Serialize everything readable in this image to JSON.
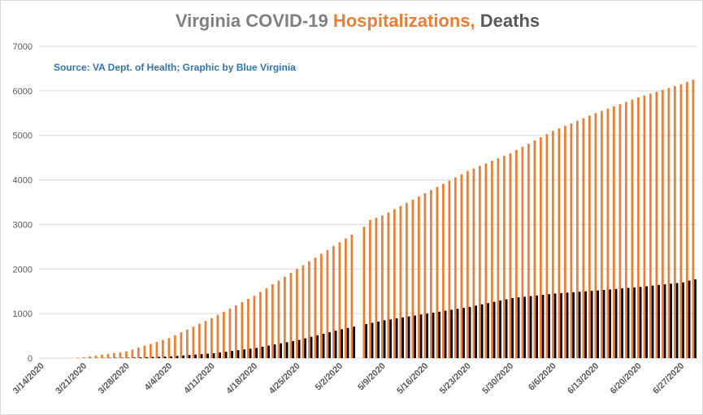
{
  "chart_data": {
    "type": "bar",
    "title_parts": [
      {
        "text": "Virginia COVID-19",
        "color": "#7f7f7f"
      },
      {
        "text": "Hospitalizations,",
        "color": "#ed7d31"
      },
      {
        "text": "Deaths",
        "color": "#595959"
      }
    ],
    "subtitle": "Source: VA Dept. of Health; Graphic by Blue Virginia",
    "categories": [
      "3/14/2020",
      null,
      null,
      null,
      null,
      null,
      null,
      "3/21/2020",
      null,
      null,
      null,
      null,
      null,
      null,
      "3/28/2020",
      null,
      null,
      null,
      null,
      null,
      null,
      "4/4/2020",
      null,
      null,
      null,
      null,
      null,
      null,
      "4/11/2020",
      null,
      null,
      null,
      null,
      null,
      null,
      "4/18/2020",
      null,
      null,
      null,
      null,
      null,
      null,
      "4/25/2020",
      null,
      null,
      null,
      null,
      null,
      null,
      "5/2/2020",
      null,
      null,
      null,
      null,
      null,
      null,
      "5/9/2020",
      null,
      null,
      null,
      null,
      null,
      null,
      "5/16/2020",
      null,
      null,
      null,
      null,
      null,
      null,
      "5/23/2020",
      null,
      null,
      null,
      null,
      null,
      null,
      "5/30/2020",
      null,
      null,
      null,
      null,
      null,
      null,
      "6/6/2020",
      null,
      null,
      null,
      null,
      null,
      null,
      "6/13/2020",
      null,
      null,
      null,
      null,
      null,
      null,
      "6/20/2020",
      null,
      null,
      null,
      null,
      null,
      null,
      "6/27/2020",
      null,
      null
    ],
    "series": [
      {
        "name": "Hospitalizations",
        "color": "#ed7d31",
        "values": [
          0,
          0,
          0,
          0,
          0,
          5,
          10,
          20,
          39,
          57,
          76,
          94,
          113,
          131,
          150,
          193,
          236,
          279,
          321,
          364,
          407,
          450,
          514,
          579,
          643,
          707,
          771,
          836,
          900,
          971,
          1043,
          1114,
          1186,
          1257,
          1329,
          1400,
          1486,
          1571,
          1657,
          1743,
          1829,
          1914,
          2000,
          2086,
          2171,
          2257,
          2343,
          2429,
          2514,
          2600,
          2686,
          2771,
          null,
          2950,
          3100,
          3150,
          3200,
          3271,
          3343,
          3414,
          3486,
          3557,
          3629,
          3700,
          3771,
          3843,
          3914,
          3986,
          4057,
          4129,
          4200,
          4257,
          4314,
          4371,
          4429,
          4486,
          4543,
          4600,
          4671,
          4743,
          4814,
          4886,
          4957,
          5029,
          5100,
          5157,
          5214,
          5271,
          5329,
          5386,
          5443,
          5500,
          5550,
          5600,
          5650,
          5700,
          5750,
          5800,
          5850,
          5893,
          5936,
          5979,
          6021,
          6064,
          6107,
          6150,
          6200,
          6250
        ]
      },
      {
        "name": "Deaths",
        "color": "#000000",
        "values": [
          0,
          0,
          0,
          0,
          0,
          0,
          1,
          2,
          3,
          4,
          5,
          7,
          8,
          9,
          10,
          14,
          19,
          23,
          27,
          31,
          36,
          40,
          50,
          60,
          70,
          80,
          90,
          100,
          110,
          127,
          144,
          161,
          179,
          196,
          213,
          230,
          256,
          281,
          307,
          333,
          359,
          384,
          410,
          444,
          479,
          513,
          547,
          581,
          616,
          650,
          679,
          707,
          null,
          764,
          793,
          821,
          850,
          871,
          893,
          914,
          936,
          957,
          979,
          1000,
          1021,
          1043,
          1064,
          1086,
          1107,
          1129,
          1150,
          1179,
          1207,
          1236,
          1264,
          1293,
          1321,
          1350,
          1364,
          1379,
          1393,
          1407,
          1421,
          1436,
          1450,
          1460,
          1470,
          1480,
          1490,
          1500,
          1510,
          1520,
          1531,
          1543,
          1554,
          1566,
          1577,
          1589,
          1600,
          1614,
          1629,
          1643,
          1657,
          1671,
          1686,
          1700,
          1740,
          1770
        ]
      }
    ],
    "ylim": [
      0,
      7000
    ],
    "yticks": [
      0,
      1000,
      2000,
      3000,
      4000,
      5000,
      6000,
      7000
    ],
    "grid": true
  }
}
